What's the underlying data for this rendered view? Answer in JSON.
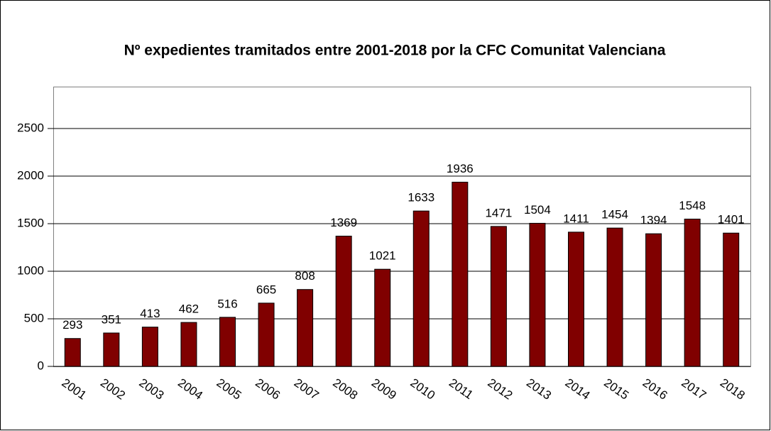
{
  "chart_data": {
    "type": "bar",
    "title": "Nº expedientes tramitados entre 2001-2018 por la CFC Comunitat Valenciana",
    "categories": [
      "2001",
      "2002",
      "2003",
      "2004",
      "2005",
      "2006",
      "2007",
      "2008",
      "2009",
      "2010",
      "2011",
      "2012",
      "2013",
      "2014",
      "2015",
      "2016",
      "2017",
      "2018"
    ],
    "values": [
      293,
      351,
      413,
      462,
      516,
      665,
      808,
      1369,
      1021,
      1633,
      1936,
      1471,
      1504,
      1411,
      1454,
      1394,
      1548,
      1401
    ],
    "color": "#800000",
    "ylim": [
      0,
      2940
    ],
    "yticks": [
      0,
      500,
      1000,
      1500,
      2000,
      2500
    ],
    "grid": true
  }
}
